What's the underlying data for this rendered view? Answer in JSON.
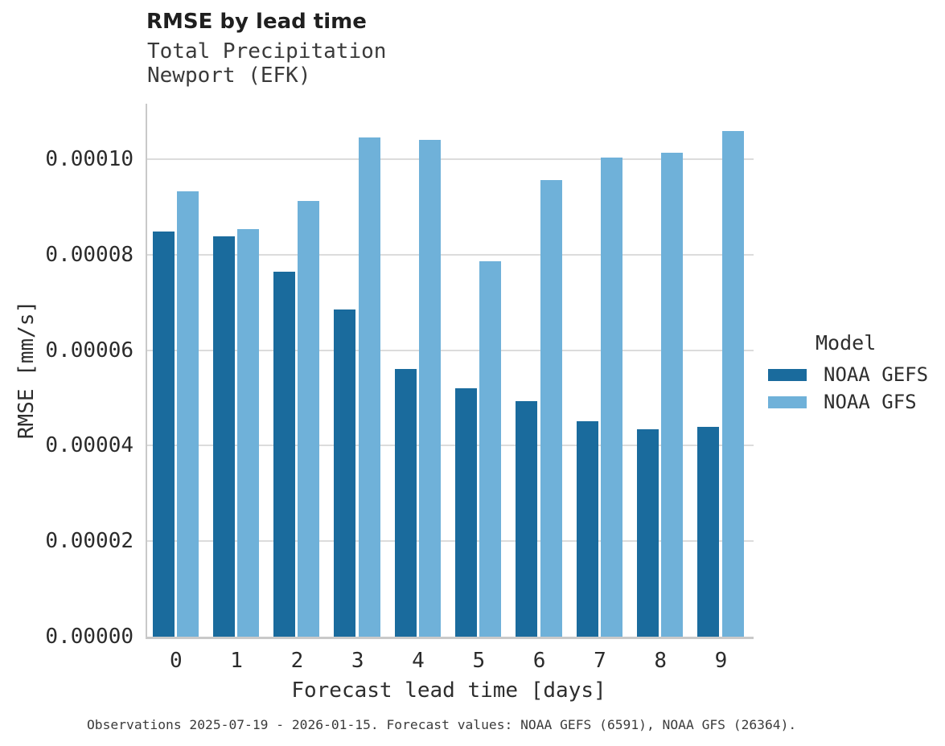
{
  "chart_data": {
    "type": "bar",
    "title": "RMSE by lead time",
    "subtitle": [
      "Total Precipitation",
      "Newport (EFK)"
    ],
    "xlabel": "Forecast lead time [days]",
    "ylabel": "RMSE [mm/s]",
    "categories": [
      "0",
      "1",
      "2",
      "3",
      "4",
      "5",
      "6",
      "7",
      "8",
      "9"
    ],
    "series": [
      {
        "name": "NOAA GEFS",
        "color": "#1A6B9D",
        "values": [
          8.48e-05,
          8.38e-05,
          7.64e-05,
          6.85e-05,
          5.6e-05,
          5.2e-05,
          4.93e-05,
          4.51e-05,
          4.34e-05,
          4.4e-05
        ]
      },
      {
        "name": "NOAA GFS",
        "color": "#6FB1D9",
        "values": [
          9.32e-05,
          8.53e-05,
          9.12e-05,
          0.0001046,
          0.0001041,
          7.87e-05,
          9.56e-05,
          0.0001004,
          0.0001014,
          0.0001059
        ]
      }
    ],
    "ylim": [
      0,
      0.00011178
    ],
    "yticks": {
      "values": [
        0,
        2e-05,
        4e-05,
        6e-05,
        8e-05,
        0.0001
      ],
      "labels": [
        "0.00000",
        "0.00002",
        "0.00004",
        "0.00006",
        "0.00008",
        "0.00010"
      ]
    },
    "grid": true,
    "legend_title": "Model",
    "legend_position": "right"
  },
  "legend": {
    "title": "Model",
    "entries": [
      {
        "label": "NOAA GEFS",
        "color": "#1A6B9D"
      },
      {
        "label": "NOAA GFS",
        "color": "#6FB1D9"
      }
    ]
  },
  "caption": "Observations 2025-07-19 - 2026-01-15. Forecast values: NOAA GEFS (6591), NOAA GFS (26364)."
}
